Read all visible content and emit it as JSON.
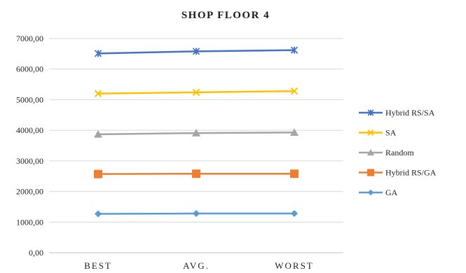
{
  "chart_data": {
    "type": "line",
    "title": "SHOP FLOOR 4",
    "xlabel": "",
    "ylabel": "",
    "categories": [
      "BEST",
      "AVG.",
      "WORST"
    ],
    "y_ticks": [
      "0,00",
      "1000,00",
      "2000,00",
      "3000,00",
      "4000,00",
      "5000,00",
      "6000,00",
      "7000,00"
    ],
    "ylim": [
      0,
      7000
    ],
    "grid": true,
    "legend_position": "right",
    "series": [
      {
        "name": "Hybrid RS/SA",
        "values": [
          6510,
          6580,
          6620
        ],
        "color": "#4472C4",
        "marker": "x-star"
      },
      {
        "name": "SA",
        "values": [
          5200,
          5240,
          5280
        ],
        "color": "#FFC000",
        "marker": "x"
      },
      {
        "name": "Random",
        "values": [
          3870,
          3910,
          3930
        ],
        "color": "#A5A5A5",
        "marker": "triangle"
      },
      {
        "name": "Hybrid RS/GA",
        "values": [
          2570,
          2580,
          2580
        ],
        "color": "#ED7D31",
        "marker": "square"
      },
      {
        "name": "GA",
        "values": [
          1270,
          1280,
          1280
        ],
        "color": "#5B9BD5",
        "marker": "diamond"
      }
    ]
  }
}
